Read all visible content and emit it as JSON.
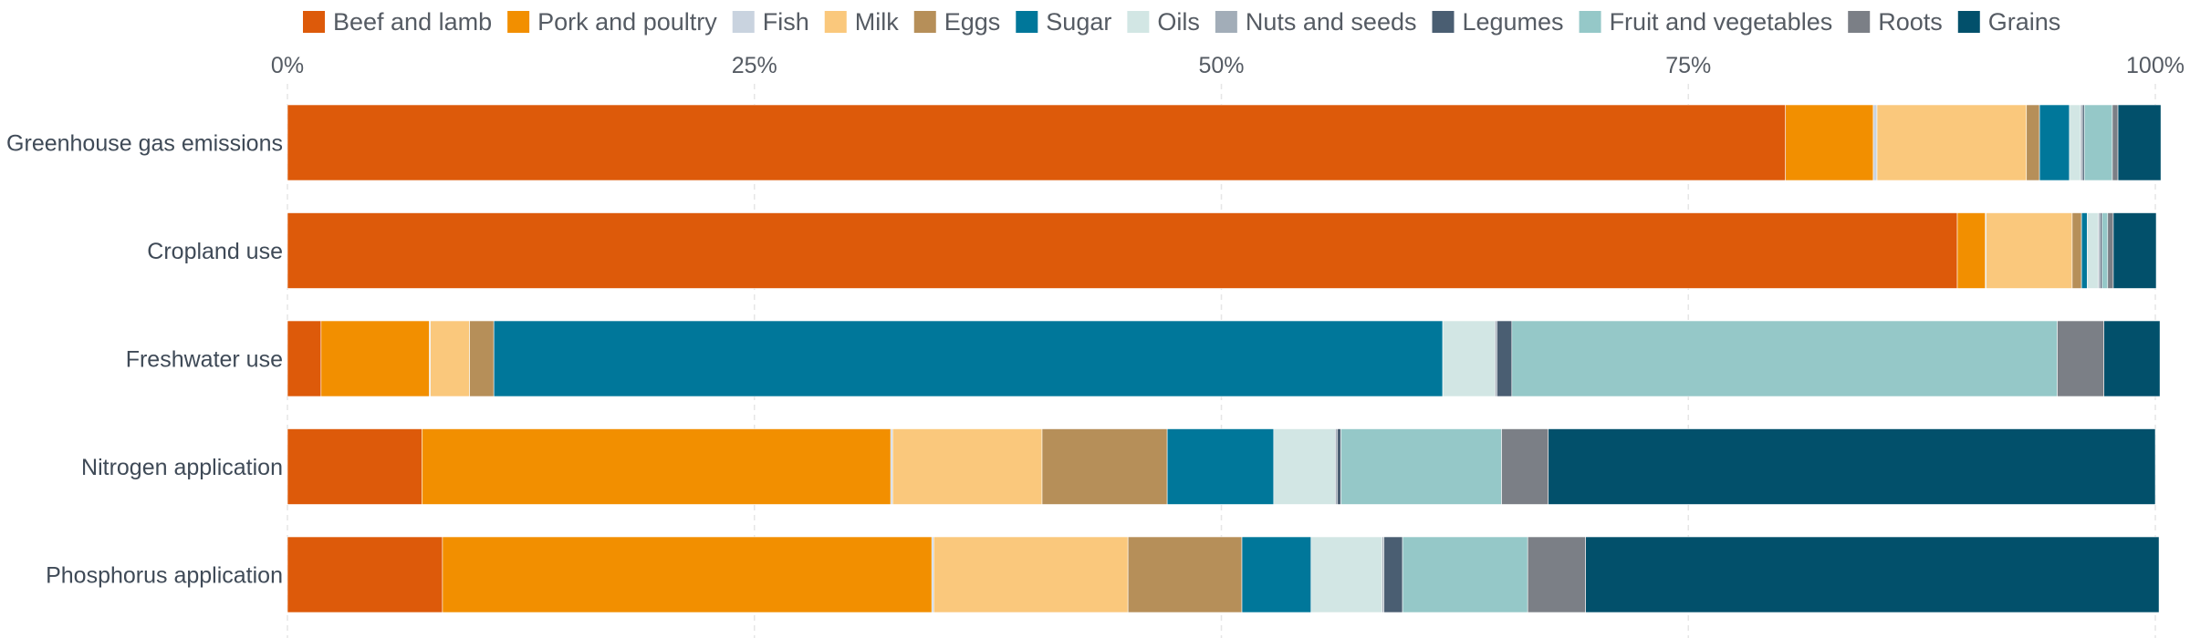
{
  "chart_data": {
    "type": "bar",
    "orientation": "horizontal",
    "stacked": true,
    "title": "",
    "xlabel": "",
    "ylabel": "",
    "xlim": [
      0,
      100
    ],
    "xticks": [
      "0%",
      "25%",
      "50%",
      "75%",
      "100%"
    ],
    "legend_position": "top",
    "grid": true,
    "categories": [
      "Greenhouse gas emissions",
      "Cropland use",
      "Freshwater use",
      "Nitrogen application",
      "Phosphorus application"
    ],
    "series": [
      {
        "name": "Beef and lamb",
        "color": "#dd5a0a",
        "values": [
          80.2,
          89.4,
          1.8,
          7.2,
          8.3
        ]
      },
      {
        "name": "Pork and poultry",
        "color": "#f28f00",
        "values": [
          4.7,
          1.5,
          5.8,
          25.1,
          26.2
        ]
      },
      {
        "name": "Fish",
        "color": "#c9d3df",
        "values": [
          0.2,
          0.05,
          0.05,
          0.1,
          0.1
        ]
      },
      {
        "name": "Milk",
        "color": "#fac87c",
        "values": [
          8.0,
          4.6,
          2.1,
          8.0,
          10.4
        ]
      },
      {
        "name": "Eggs",
        "color": "#b68f59",
        "values": [
          0.7,
          0.5,
          1.3,
          6.7,
          6.1
        ]
      },
      {
        "name": "Sugar",
        "color": "#00779a",
        "values": [
          1.6,
          0.3,
          50.8,
          5.7,
          3.7
        ]
      },
      {
        "name": "Oils",
        "color": "#d2e6e4",
        "values": [
          0.6,
          0.6,
          2.8,
          3.3,
          3.8
        ]
      },
      {
        "name": "Nuts and seeds",
        "color": "#a2adb8",
        "values": [
          0.1,
          0.1,
          0.1,
          0.1,
          0.1
        ]
      },
      {
        "name": "Legumes",
        "color": "#4a5e72",
        "values": [
          0.1,
          0.1,
          0.8,
          0.2,
          1.0
        ]
      },
      {
        "name": "Fruit and vegetables",
        "color": "#95c8c8",
        "values": [
          1.5,
          0.3,
          29.2,
          8.6,
          6.7
        ]
      },
      {
        "name": "Roots",
        "color": "#7b7f86",
        "values": [
          0.3,
          0.3,
          2.5,
          2.5,
          3.1
        ]
      },
      {
        "name": "Grains",
        "color": "#02506b",
        "values": [
          2.3,
          2.3,
          3.0,
          32.5,
          30.7
        ]
      }
    ]
  }
}
